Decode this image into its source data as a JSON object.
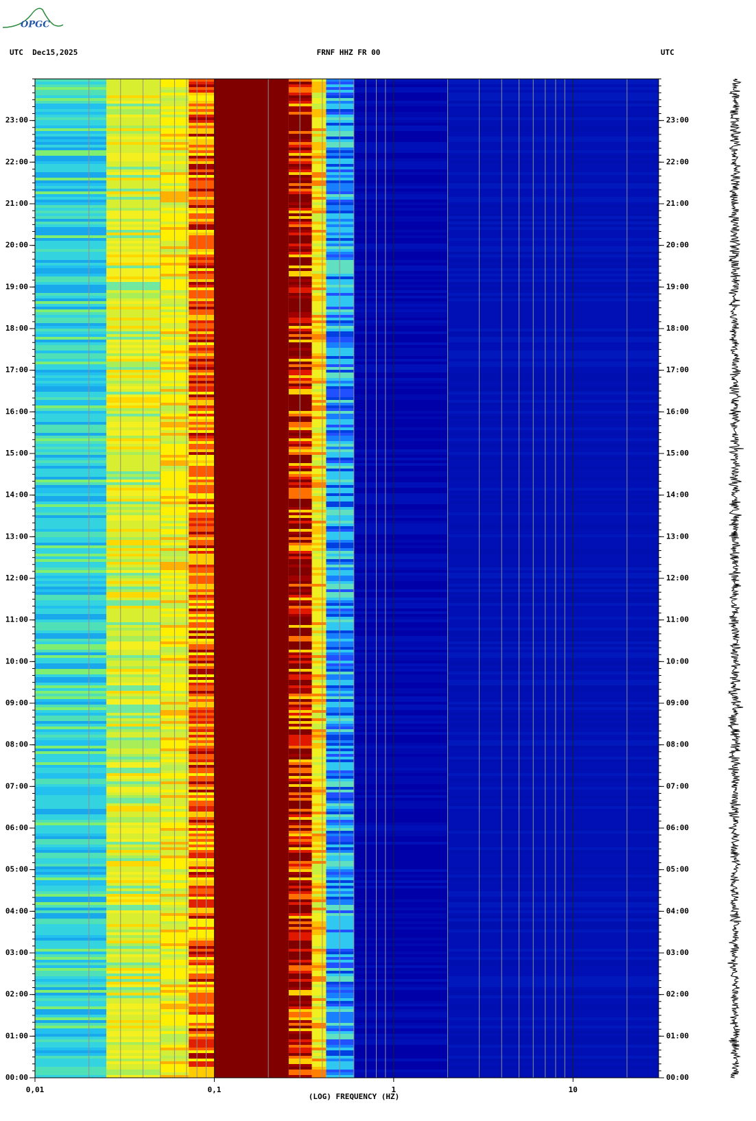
{
  "logo": "OPGC",
  "header": {
    "left": "UTC  Dec15,2025",
    "center": "FRNF HHZ FR 00",
    "right": "UTC"
  },
  "chart_data": {
    "type": "spectrogram",
    "x_label": "(LOG) FREQUENCY (HZ)",
    "x_log": true,
    "xlim": [
      0.01,
      30
    ],
    "xticks": [
      {
        "value": 0.01,
        "label": "0,01"
      },
      {
        "value": 0.1,
        "label": "0,1"
      },
      1,
      10
    ],
    "ylim": [
      0,
      24
    ],
    "yticks": [
      {
        "value": 0,
        "label": "00:00"
      },
      {
        "value": 1,
        "label": "01:00"
      },
      {
        "value": 2,
        "label": "02:00"
      },
      {
        "value": 3,
        "label": "03:00"
      },
      {
        "value": 4,
        "label": "04:00"
      },
      {
        "value": 5,
        "label": "05:00"
      },
      {
        "value": 6,
        "label": "06:00"
      },
      {
        "value": 7,
        "label": "07:00"
      },
      {
        "value": 8,
        "label": "08:00"
      },
      {
        "value": 9,
        "label": "09:00"
      },
      {
        "value": 10,
        "label": "10:00"
      },
      {
        "value": 11,
        "label": "11:00"
      },
      {
        "value": 12,
        "label": "12:00"
      },
      {
        "value": 13,
        "label": "13:00"
      },
      {
        "value": 14,
        "label": "14:00"
      },
      {
        "value": 15,
        "label": "15:00"
      },
      {
        "value": 16,
        "label": "16:00"
      },
      {
        "value": 17,
        "label": "17:00"
      },
      {
        "value": 18,
        "label": "18:00"
      },
      {
        "value": 19,
        "label": "19:00"
      },
      {
        "value": 20,
        "label": "20:00"
      },
      {
        "value": 21,
        "label": "21:00"
      },
      {
        "value": 22,
        "label": "22:00"
      },
      {
        "value": 23,
        "label": "23:00"
      }
    ],
    "bands": [
      {
        "from": 0.01,
        "to": 0.025,
        "colors": [
          "#33d4e0",
          "#1aa8ec",
          "#4fe0b8",
          "#22c0ee",
          "#80ee70"
        ]
      },
      {
        "from": 0.025,
        "to": 0.05,
        "colors": [
          "#d8ee30",
          "#f4f020",
          "#a8ee58",
          "#ffd800",
          "#70e8a0"
        ]
      },
      {
        "from": 0.05,
        "to": 0.072,
        "colors": [
          "#fff000",
          "#d4ee38",
          "#ffb000",
          "#b8ee50"
        ]
      },
      {
        "from": 0.072,
        "to": 0.1,
        "colors": [
          "#ff5a00",
          "#ffcc00",
          "#e02000",
          "#fff000",
          "#a00000"
        ]
      },
      {
        "from": 0.1,
        "to": 0.26,
        "colors": [
          "#800000"
        ]
      },
      {
        "from": 0.26,
        "to": 0.35,
        "colors": [
          "#800000",
          "#e01800",
          "#ff7000",
          "#a00000",
          "#ffd000"
        ]
      },
      {
        "from": 0.35,
        "to": 0.42,
        "colors": [
          "#f0f020",
          "#ffc000",
          "#c8f040",
          "#ff8000"
        ]
      },
      {
        "from": 0.42,
        "to": 0.6,
        "colors": [
          "#30c8f0",
          "#1880ff",
          "#2050ff",
          "#60e0c0",
          "#0040e0"
        ]
      },
      {
        "from": 0.6,
        "to": 2,
        "colors": [
          "#0000a8",
          "#0008b0",
          "#0010b8"
        ]
      },
      {
        "from": 2,
        "to": 30,
        "colors": [
          "#0010b4",
          "#0018bc",
          "#0010b0"
        ]
      }
    ]
  }
}
